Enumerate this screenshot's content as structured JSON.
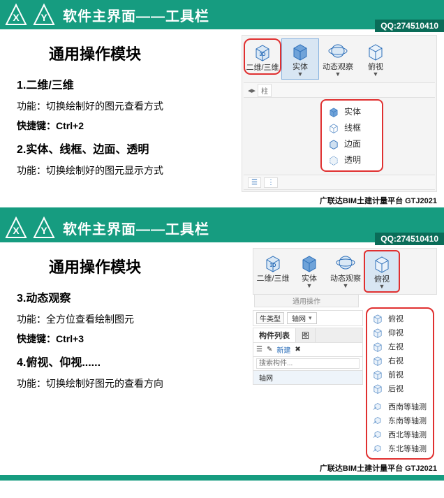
{
  "brand_color": "#169c80",
  "qq": "QQ:274510410",
  "footer": "广联达BIM土建计量平台 GTJ2021",
  "header_title": "软件主界面——工具栏",
  "section_title": "通用操作模块",
  "slide1": {
    "items": [
      {
        "num": "1.",
        "heading": "二维/三维",
        "fn": "功能：切换绘制好的图元查看方式",
        "hk": "快捷键：Ctrl+2"
      },
      {
        "num": "2.",
        "heading": "实体、线框、边面、透明",
        "fn": "功能：切换绘制好的图元显示方式"
      }
    ],
    "ribbon": {
      "buttons": [
        {
          "label": "二维/三维",
          "red": true,
          "icon": "cube3d"
        },
        {
          "label": "实体",
          "hover": true,
          "arrow": true,
          "icon": "cubesolid"
        },
        {
          "label": "动态观察",
          "arrow": true,
          "icon": "orbit"
        },
        {
          "label": "俯视",
          "arrow": true,
          "icon": "cubeplain"
        }
      ],
      "dropdown": [
        {
          "label": "实体",
          "icon": "cubesolid"
        },
        {
          "label": "线框",
          "icon": "cubewire"
        },
        {
          "label": "边面",
          "icon": "cubeedge"
        },
        {
          "label": "透明",
          "icon": "cubetrans"
        }
      ],
      "strip_left": "柱"
    }
  },
  "slide2": {
    "items": [
      {
        "num": "3.",
        "heading": "动态观察",
        "fn": "功能：全方位查看绘制图元",
        "hk": "快捷键：Ctrl+3"
      },
      {
        "num": "4.",
        "heading": "俯视、仰视......",
        "fn": "功能：切换绘制好图元的查看方向"
      }
    ],
    "ribbon": {
      "buttons": [
        {
          "label": "二维/三维",
          "icon": "cube3d"
        },
        {
          "label": "实体",
          "arrow": true,
          "icon": "cubesolid"
        },
        {
          "label": "动态观察",
          "arrow": true,
          "icon": "orbit"
        },
        {
          "label": "俯视",
          "sel": true,
          "arrow": true,
          "icon": "cubeplain"
        }
      ],
      "group_label": "通用操作",
      "filter_row": {
        "label": "牛类型",
        "value": "轴网"
      },
      "panel_tabs": [
        "构件列表",
        "图"
      ],
      "toolbar": [
        "☰",
        "✎",
        "新建",
        "✖"
      ],
      "search_placeholder": "搜索构件...",
      "tree_item": "轴网",
      "view_menu": {
        "top": [
          {
            "label": "俯视",
            "icon": "cubeplain"
          },
          {
            "label": "仰视",
            "icon": "cubeplain"
          },
          {
            "label": "左视",
            "icon": "cubeplain"
          },
          {
            "label": "右视",
            "icon": "cubeplain"
          },
          {
            "label": "前视",
            "icon": "cubeplain"
          },
          {
            "label": "后视",
            "icon": "cubeplain"
          }
        ],
        "bottom": [
          {
            "label": "西南等轴测",
            "icon": "iso"
          },
          {
            "label": "东南等轴测",
            "icon": "iso"
          },
          {
            "label": "西北等轴测",
            "icon": "iso"
          },
          {
            "label": "东北等轴测",
            "icon": "iso"
          }
        ]
      }
    }
  }
}
